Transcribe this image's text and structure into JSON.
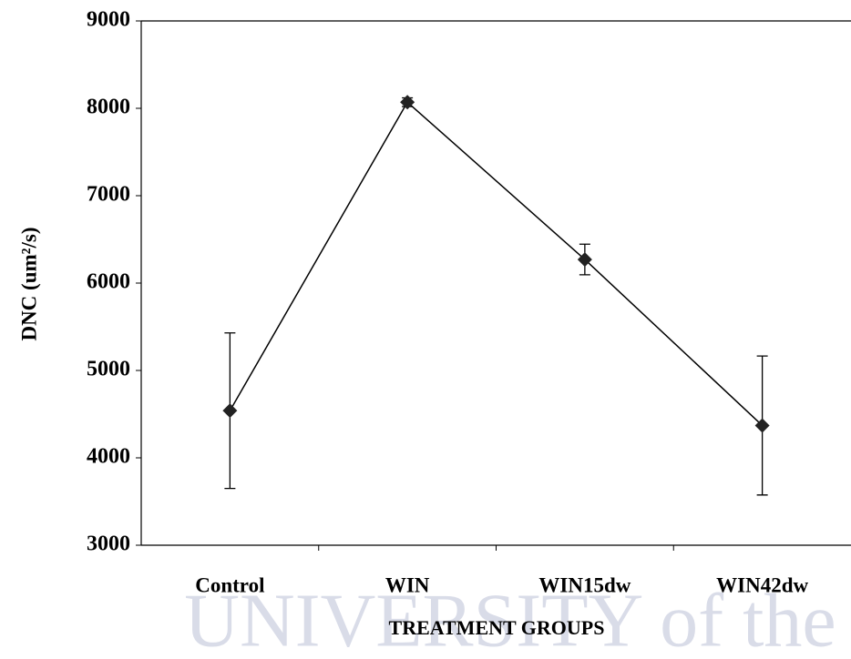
{
  "chart_data": {
    "type": "line",
    "title": null,
    "x_label": "TREATMENT GROUPS",
    "y_label": "DNC (um²/s)",
    "categories": [
      "Control",
      "WIN",
      "WIN15dw",
      "WIN42dw"
    ],
    "series": [
      {
        "name": null,
        "color": "#000000",
        "values": [
          4540,
          8070,
          6270,
          4370
        ],
        "errors": [
          890,
          50,
          175,
          795
        ]
      }
    ],
    "ylim": [
      3000,
      9000
    ],
    "yticks": [
      3000,
      4000,
      5000,
      6000,
      7000,
      8000,
      9000
    ],
    "grid": false
  },
  "watermark": "UNIVERSITY of the"
}
